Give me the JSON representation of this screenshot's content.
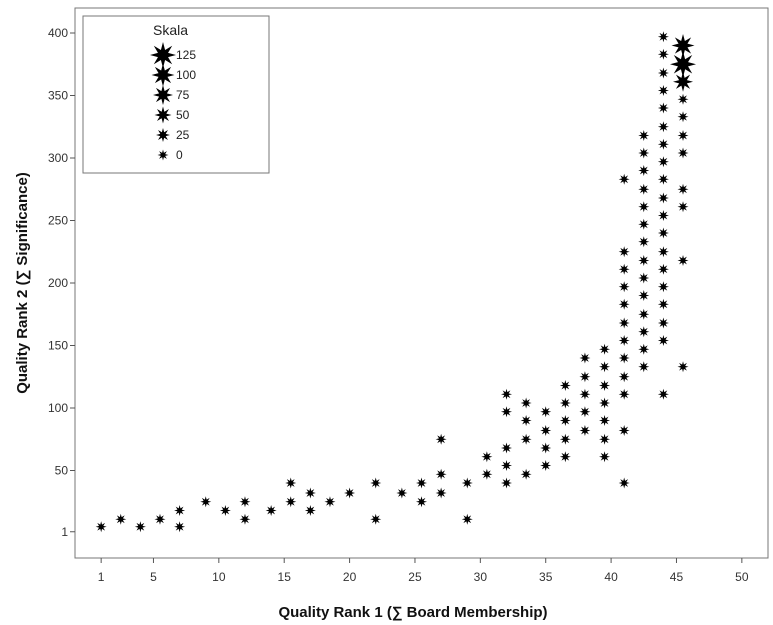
{
  "chart_data": {
    "type": "scatter",
    "title": "",
    "xlabel": "Quality Rank 1 (∑ Board Membership)",
    "ylabel": "Quality Rank 2 (∑ Significance)",
    "xlim": [
      -1,
      52
    ],
    "ylim": [
      -20,
      420
    ],
    "x_ticks": [
      1,
      5,
      10,
      15,
      20,
      25,
      30,
      35,
      40,
      45,
      50
    ],
    "y_ticks": [
      1,
      50,
      100,
      150,
      200,
      250,
      300,
      350,
      400
    ],
    "marker": "star",
    "marker_color": "#000000",
    "grid": false,
    "legend": {
      "title": "Skala",
      "placement": "top-left",
      "entries": [
        {
          "label": "125",
          "size": 125
        },
        {
          "label": "100",
          "size": 100
        },
        {
          "label": "75",
          "size": 75
        },
        {
          "label": "50",
          "size": 50
        },
        {
          "label": "25",
          "size": 25
        },
        {
          "label": "0",
          "size": 0
        }
      ]
    },
    "points": [
      {
        "x": 1,
        "y": 5
      },
      {
        "x": 2.5,
        "y": 11
      },
      {
        "x": 4,
        "y": 5
      },
      {
        "x": 5.5,
        "y": 11
      },
      {
        "x": 7,
        "y": 5
      },
      {
        "x": 7,
        "y": 18
      },
      {
        "x": 9,
        "y": 25
      },
      {
        "x": 10.5,
        "y": 18
      },
      {
        "x": 12,
        "y": 25
      },
      {
        "x": 12,
        "y": 11
      },
      {
        "x": 14,
        "y": 18
      },
      {
        "x": 15.5,
        "y": 25
      },
      {
        "x": 15.5,
        "y": 40
      },
      {
        "x": 17,
        "y": 18
      },
      {
        "x": 17,
        "y": 32
      },
      {
        "x": 18.5,
        "y": 25
      },
      {
        "x": 20,
        "y": 32
      },
      {
        "x": 22,
        "y": 40
      },
      {
        "x": 22,
        "y": 11
      },
      {
        "x": 24,
        "y": 32
      },
      {
        "x": 25.5,
        "y": 25
      },
      {
        "x": 25.5,
        "y": 40
      },
      {
        "x": 27,
        "y": 32
      },
      {
        "x": 27,
        "y": 47
      },
      {
        "x": 27,
        "y": 75
      },
      {
        "x": 29,
        "y": 40
      },
      {
        "x": 29,
        "y": 11
      },
      {
        "x": 30.5,
        "y": 47
      },
      {
        "x": 30.5,
        "y": 61
      },
      {
        "x": 32,
        "y": 40
      },
      {
        "x": 32,
        "y": 54
      },
      {
        "x": 32,
        "y": 68
      },
      {
        "x": 32,
        "y": 97
      },
      {
        "x": 32,
        "y": 111
      },
      {
        "x": 33.5,
        "y": 47
      },
      {
        "x": 33.5,
        "y": 75
      },
      {
        "x": 33.5,
        "y": 90
      },
      {
        "x": 33.5,
        "y": 104
      },
      {
        "x": 35,
        "y": 54
      },
      {
        "x": 35,
        "y": 68
      },
      {
        "x": 35,
        "y": 82
      },
      {
        "x": 35,
        "y": 97
      },
      {
        "x": 36.5,
        "y": 61
      },
      {
        "x": 36.5,
        "y": 75
      },
      {
        "x": 36.5,
        "y": 90
      },
      {
        "x": 36.5,
        "y": 104
      },
      {
        "x": 36.5,
        "y": 118
      },
      {
        "x": 38,
        "y": 82
      },
      {
        "x": 38,
        "y": 97
      },
      {
        "x": 38,
        "y": 111
      },
      {
        "x": 38,
        "y": 125
      },
      {
        "x": 38,
        "y": 140
      },
      {
        "x": 39.5,
        "y": 61
      },
      {
        "x": 39.5,
        "y": 75
      },
      {
        "x": 39.5,
        "y": 90
      },
      {
        "x": 39.5,
        "y": 104
      },
      {
        "x": 39.5,
        "y": 118
      },
      {
        "x": 39.5,
        "y": 133
      },
      {
        "x": 39.5,
        "y": 147
      },
      {
        "x": 41,
        "y": 40
      },
      {
        "x": 41,
        "y": 82
      },
      {
        "x": 41,
        "y": 111
      },
      {
        "x": 41,
        "y": 125
      },
      {
        "x": 41,
        "y": 140
      },
      {
        "x": 41,
        "y": 154
      },
      {
        "x": 41,
        "y": 168
      },
      {
        "x": 41,
        "y": 183
      },
      {
        "x": 41,
        "y": 197
      },
      {
        "x": 41,
        "y": 211
      },
      {
        "x": 41,
        "y": 225
      },
      {
        "x": 41,
        "y": 283
      },
      {
        "x": 42.5,
        "y": 133
      },
      {
        "x": 42.5,
        "y": 147
      },
      {
        "x": 42.5,
        "y": 161
      },
      {
        "x": 42.5,
        "y": 175
      },
      {
        "x": 42.5,
        "y": 190
      },
      {
        "x": 42.5,
        "y": 204
      },
      {
        "x": 42.5,
        "y": 218
      },
      {
        "x": 42.5,
        "y": 233
      },
      {
        "x": 42.5,
        "y": 247
      },
      {
        "x": 42.5,
        "y": 261
      },
      {
        "x": 42.5,
        "y": 275
      },
      {
        "x": 42.5,
        "y": 290
      },
      {
        "x": 42.5,
        "y": 304
      },
      {
        "x": 42.5,
        "y": 318
      },
      {
        "x": 44,
        "y": 111
      },
      {
        "x": 44,
        "y": 154
      },
      {
        "x": 44,
        "y": 168
      },
      {
        "x": 44,
        "y": 183
      },
      {
        "x": 44,
        "y": 197
      },
      {
        "x": 44,
        "y": 211
      },
      {
        "x": 44,
        "y": 225
      },
      {
        "x": 44,
        "y": 240
      },
      {
        "x": 44,
        "y": 254
      },
      {
        "x": 44,
        "y": 268
      },
      {
        "x": 44,
        "y": 283
      },
      {
        "x": 44,
        "y": 297
      },
      {
        "x": 44,
        "y": 311
      },
      {
        "x": 44,
        "y": 325
      },
      {
        "x": 44,
        "y": 340
      },
      {
        "x": 44,
        "y": 354
      },
      {
        "x": 44,
        "y": 368
      },
      {
        "x": 44,
        "y": 383
      },
      {
        "x": 44,
        "y": 397
      },
      {
        "x": 45.5,
        "y": 133
      },
      {
        "x": 45.5,
        "y": 218
      },
      {
        "x": 45.5,
        "y": 261
      },
      {
        "x": 45.5,
        "y": 275
      },
      {
        "x": 45.5,
        "y": 304
      },
      {
        "x": 45.5,
        "y": 318
      },
      {
        "x": 45.5,
        "y": 333
      },
      {
        "x": 45.5,
        "y": 347
      },
      {
        "x": 45.5,
        "y": 361,
        "size": 75
      },
      {
        "x": 45.5,
        "y": 375,
        "size": 125
      },
      {
        "x": 45.5,
        "y": 390,
        "size": 100
      }
    ]
  }
}
